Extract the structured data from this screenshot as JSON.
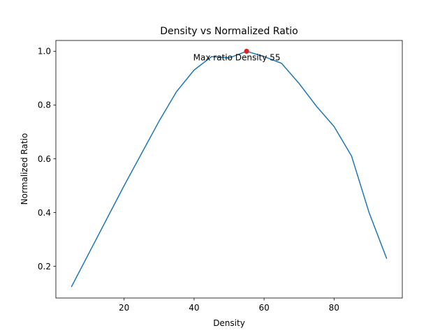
{
  "chart_data": {
    "type": "line",
    "title": "Density vs Normalized Ratio",
    "xlabel": "Density",
    "ylabel": "Normalized Ratio",
    "xlim": [
      0.5,
      99.5
    ],
    "ylim": [
      0.082,
      1.04
    ],
    "xticks": [
      20,
      40,
      60,
      80
    ],
    "yticks": [
      0.2,
      0.4,
      0.6,
      0.8,
      1.0
    ],
    "xtick_labels": [
      "20",
      "40",
      "60",
      "80"
    ],
    "ytick_labels": [
      "0.2",
      "0.4",
      "0.6",
      "0.8",
      "1.0"
    ],
    "grid": false,
    "series": [
      {
        "color": "#1f77b4",
        "x": [
          5,
          10,
          15,
          20,
          25,
          30,
          35,
          40,
          45,
          50,
          55,
          60,
          65,
          70,
          75,
          80,
          85,
          90,
          95
        ],
        "y": [
          0.125,
          0.25,
          0.375,
          0.5,
          0.62,
          0.74,
          0.85,
          0.93,
          0.98,
          0.975,
          1.0,
          0.98,
          0.955,
          0.88,
          0.795,
          0.72,
          0.61,
          0.4,
          0.23
        ]
      }
    ],
    "highlight": {
      "x": 55,
      "y": 1.0,
      "color": "#d62728"
    },
    "annotation": {
      "text": "Max ratio Density 55",
      "x": 55,
      "y": 1.0
    }
  }
}
